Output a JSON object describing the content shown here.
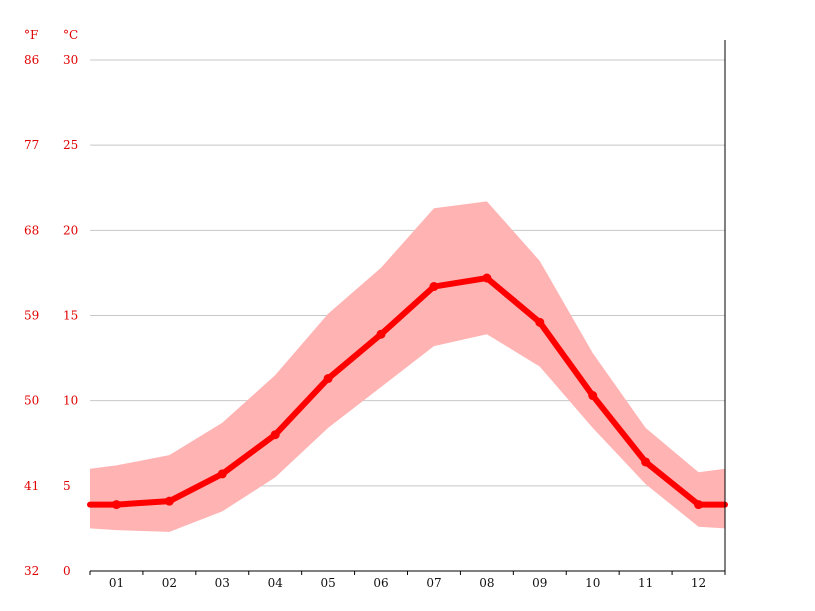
{
  "chart_data": {
    "type": "line",
    "title": "",
    "xlabel": "",
    "ylabel": "",
    "units": {
      "fahrenheit": "°F",
      "celsius": "°C"
    },
    "categories": [
      "01",
      "02",
      "03",
      "04",
      "05",
      "06",
      "07",
      "08",
      "09",
      "10",
      "11",
      "12"
    ],
    "series": [
      {
        "values": [
          3.9,
          4.1,
          5.7,
          8.0,
          11.3,
          13.9,
          16.7,
          17.2,
          14.6,
          10.3,
          6.4,
          3.9
        ]
      }
    ],
    "band": {
      "upper": [
        6.2,
        6.8,
        8.7,
        11.5,
        15.1,
        17.8,
        21.3,
        21.7,
        18.2,
        12.8,
        8.4,
        5.8
      ],
      "lower": [
        2.4,
        2.3,
        3.5,
        5.5,
        8.4,
        10.8,
        13.2,
        13.9,
        12.0,
        8.4,
        5.1,
        2.6
      ],
      "edge_value_left_upper": 6.0,
      "edge_value_left_lower": 2.5,
      "edge_value_right_upper": 6.0,
      "edge_value_right_lower": 2.5
    },
    "ylim_celsius": [
      0,
      30
    ],
    "yticks_celsius": [
      "0",
      "5",
      "10",
      "15",
      "20",
      "25",
      "30"
    ],
    "yticks_fahrenheit": [
      "32",
      "41",
      "50",
      "59",
      "68",
      "77",
      "86"
    ],
    "grid": true,
    "colors": {
      "line": "#ff0000",
      "band": "#ffb3b3",
      "grid": "#c8c8c8",
      "axis": "#000000",
      "ytick_text": "#e00000",
      "xtick_text": "#111111"
    }
  }
}
